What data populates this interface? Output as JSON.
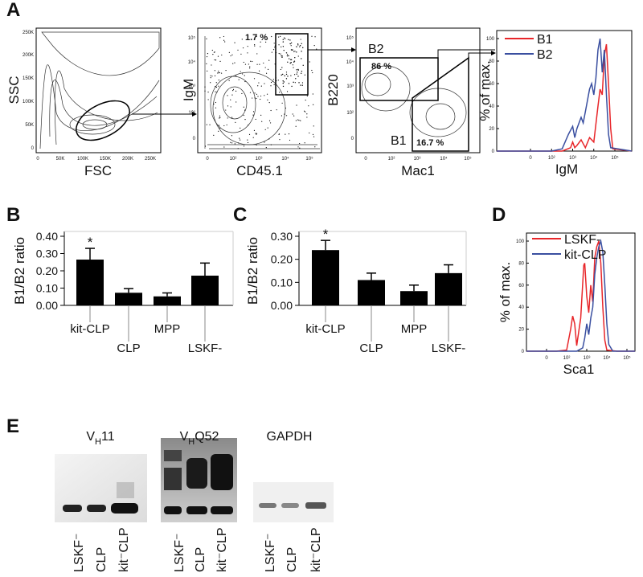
{
  "panel_labels": [
    "A",
    "B",
    "C",
    "D",
    "E"
  ],
  "flow_plots": [
    {
      "x_label": "FSC",
      "y_label": "SSC",
      "xticks": [
        "0",
        "50K",
        "100K",
        "150K",
        "200K",
        "250K"
      ],
      "yticks": [
        "0",
        "50K",
        "100K",
        "150K",
        "200K",
        "250K"
      ],
      "gates": []
    },
    {
      "x_label": "CD45.1",
      "y_label": "IgM",
      "xticks": [
        "0",
        "10²",
        "10³",
        "10⁴",
        "10⁵"
      ],
      "yticks": [
        "0",
        "10²",
        "10³",
        "10⁴",
        "10⁵"
      ],
      "gates": [
        "1.7 %"
      ]
    },
    {
      "x_label": "Mac1",
      "y_label": "B220",
      "xticks": [
        "0",
        "10²",
        "10³",
        "10⁴",
        "10⁵"
      ],
      "yticks": [
        "0",
        "10²",
        "10³",
        "10⁴",
        "10⁵"
      ],
      "gates": [
        "B2",
        "86 %",
        "B1",
        "16.7 %"
      ]
    }
  ],
  "chart_data": [
    {
      "type": "line",
      "x_label": "IgM",
      "y_label": "% of max.",
      "xlim": [
        -1.6,
        4.8
      ],
      "ylim": [
        0,
        100
      ],
      "xticks": [
        0,
        {
          "value": 1,
          "label": "10²"
        },
        {
          "value": 2,
          "label": "10³"
        },
        {
          "value": 3,
          "label": "10⁴"
        },
        {
          "value": 4,
          "label": "10⁵"
        }
      ],
      "yticks": [
        0,
        20,
        40,
        60,
        80,
        100
      ],
      "series": [
        {
          "name": "B1",
          "color": "#e8262a",
          "x": [
            -1.6,
            0,
            1,
            1.5,
            1.9,
            2.0,
            2.1,
            2.2,
            2.4,
            2.6,
            2.8,
            3.0,
            3.2,
            3.3,
            3.4,
            3.5,
            3.6,
            3.7,
            3.8,
            3.9,
            4.8
          ],
          "values": [
            0,
            0,
            0,
            0,
            3,
            8,
            3,
            5,
            10,
            3,
            12,
            8,
            40,
            55,
            50,
            85,
            95,
            60,
            20,
            2,
            0
          ]
        },
        {
          "name": "B2",
          "color": "#3a4fa0",
          "x": [
            -1.6,
            0,
            1,
            1.5,
            1.8,
            2.0,
            2.1,
            2.2,
            2.4,
            2.5,
            2.6,
            2.8,
            2.9,
            3.0,
            3.1,
            3.2,
            3.3,
            3.4,
            3.5,
            3.6,
            3.7,
            3.8,
            4.8
          ],
          "values": [
            0,
            0,
            0,
            2,
            15,
            22,
            12,
            20,
            30,
            25,
            35,
            55,
            60,
            50,
            65,
            90,
            100,
            70,
            90,
            50,
            15,
            3,
            0
          ]
        }
      ]
    },
    {
      "type": "bar",
      "y_label": "B1/B2 ratio",
      "categories": [
        "kit-CLP",
        "CLP",
        "MPP",
        "LSKF-"
      ],
      "values": [
        0.265,
        0.073,
        0.052,
        0.172
      ],
      "errors": [
        0.065,
        0.024,
        0.02,
        0.073
      ],
      "color": "#000000",
      "ylim": [
        0,
        0.4
      ],
      "yticks": [
        {
          "value": 0,
          "label": "0.00"
        },
        {
          "value": 0.1,
          "label": "0.10"
        },
        {
          "value": 0.2,
          "label": "0.20"
        },
        {
          "value": 0.3,
          "label": "0.30"
        },
        {
          "value": 0.4,
          "label": "0.40"
        }
      ],
      "annotation": "*"
    },
    {
      "type": "bar",
      "y_label": "B1/B2 ratio",
      "categories": [
        "kit-CLP",
        "CLP",
        "MPP",
        "LSKF-"
      ],
      "values": [
        0.24,
        0.11,
        0.062,
        0.14
      ],
      "errors": [
        0.042,
        0.03,
        0.026,
        0.036
      ],
      "color": "#000000",
      "ylim": [
        0,
        0.3
      ],
      "yticks": [
        {
          "value": 0,
          "label": "0.00"
        },
        {
          "value": 0.1,
          "label": "0.10"
        },
        {
          "value": 0.2,
          "label": "0.20"
        },
        {
          "value": 0.3,
          "label": "0.30"
        }
      ],
      "annotation": "*"
    },
    {
      "type": "line",
      "x_label": "Sca1",
      "y_label": "% of max.",
      "xlim": [
        -1,
        4.4
      ],
      "ylim": [
        0,
        100
      ],
      "xticks": [
        0,
        {
          "value": 1,
          "label": "10²"
        },
        {
          "value": 2,
          "label": "10³"
        },
        {
          "value": 3,
          "label": "10⁴"
        },
        {
          "value": 4,
          "label": "10⁵"
        }
      ],
      "yticks": [
        0,
        20,
        40,
        60,
        80,
        100
      ],
      "series": [
        {
          "name": "LSKF-",
          "color": "#e8262a",
          "x": [
            -1,
            0,
            0.5,
            1.0,
            1.2,
            1.3,
            1.4,
            1.5,
            1.7,
            1.85,
            1.9,
            2.0,
            2.1,
            2.2,
            2.3,
            2.4,
            2.5,
            2.6,
            2.7,
            2.8,
            2.9,
            3.0,
            3.5,
            4.4
          ],
          "values": [
            0,
            0,
            0,
            1,
            20,
            32,
            25,
            5,
            30,
            78,
            80,
            50,
            35,
            60,
            45,
            85,
            95,
            100,
            80,
            40,
            10,
            1,
            0,
            0
          ]
        },
        {
          "name": "kit-CLP",
          "color": "#3a4fa0",
          "x": [
            -1,
            0,
            1,
            1.5,
            1.8,
            1.9,
            2.0,
            2.1,
            2.2,
            2.3,
            2.4,
            2.5,
            2.6,
            2.7,
            2.8,
            2.9,
            3.0,
            3.1,
            3.3,
            4.4
          ],
          "values": [
            0,
            0,
            0,
            0,
            3,
            12,
            25,
            15,
            30,
            40,
            70,
            85,
            95,
            100,
            90,
            60,
            25,
            6,
            0,
            0
          ]
        }
      ]
    }
  ],
  "gels": [
    {
      "title": {
        "prefix": "V",
        "subscript": "H",
        "suffix": "11"
      },
      "lanes": [
        "LSKF⁻",
        "CLP",
        "kit⁻CLP"
      ]
    },
    {
      "title": {
        "prefix": "V",
        "subscript": "H",
        "suffix": "Q52"
      },
      "lanes": [
        "LSKF⁻",
        "CLP",
        "kit⁻CLP"
      ]
    },
    {
      "title": {
        "prefix": "GAPDH"
      },
      "lanes": [
        "LSKF⁻",
        "CLP",
        "kit⁻CLP"
      ]
    }
  ]
}
